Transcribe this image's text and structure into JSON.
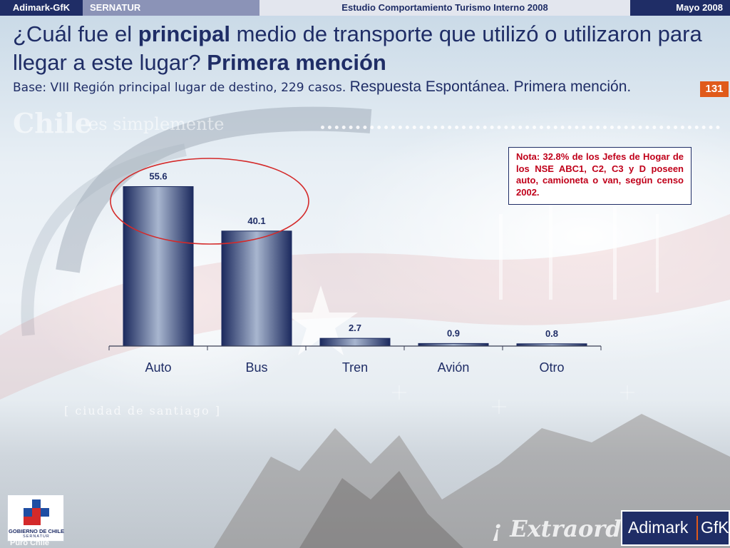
{
  "header": {
    "brand": "Adimark-GfK",
    "client": "SERNATUR",
    "study": "Estudio Comportamiento Turismo Interno 2008",
    "date": "Mayo 2008"
  },
  "title": {
    "part1": "¿Cuál fue el ",
    "bold1": "principal",
    "part2": " medio de transporte que utilizó o utilizaron para llegar a este lugar? ",
    "bold2": "Primera mención"
  },
  "base": {
    "text": "Base: VIII Región principal lugar de destino, 229 casos. ",
    "response": "Respuesta Espontánea. Primera mención."
  },
  "page_number": "131",
  "note": "Nota: 32.8% de los Jefes de Hogar de los NSE ABC1, C2, C3 y D poseen auto, camioneta o van, según censo 2002.",
  "background_text": {
    "chile": "Chile",
    "es": "es simplemente",
    "extra": "¡ Extraord",
    "ciudad": "[ ciudad de santiago ]"
  },
  "logos": {
    "gob_line1": "GOBIERNO DE CHILE",
    "gob_line2": "SERNATUR",
    "puro_chile": "Puro Chile",
    "adimark": "Adimark",
    "gfk": "GfK"
  },
  "colors": {
    "bar_dark": "#1c2a5e",
    "bar_light": "#a8b6cf",
    "highlight_ellipse": "#d42a2a",
    "accent_orange": "#e05a1a",
    "navy": "#1f2d66"
  },
  "chart_data": {
    "type": "bar",
    "categories": [
      "Auto",
      "Bus",
      "Tren",
      "Avión",
      "Otro"
    ],
    "values": [
      55.6,
      40.1,
      2.7,
      0.9,
      0.8
    ],
    "value_labels": [
      "55.6",
      "40.1",
      "2.7",
      "0.9",
      "0.8"
    ],
    "title": "",
    "xlabel": "",
    "ylabel": "",
    "ylim": [
      0,
      60
    ],
    "grid": false,
    "highlight": [
      "Auto",
      "Bus"
    ]
  }
}
